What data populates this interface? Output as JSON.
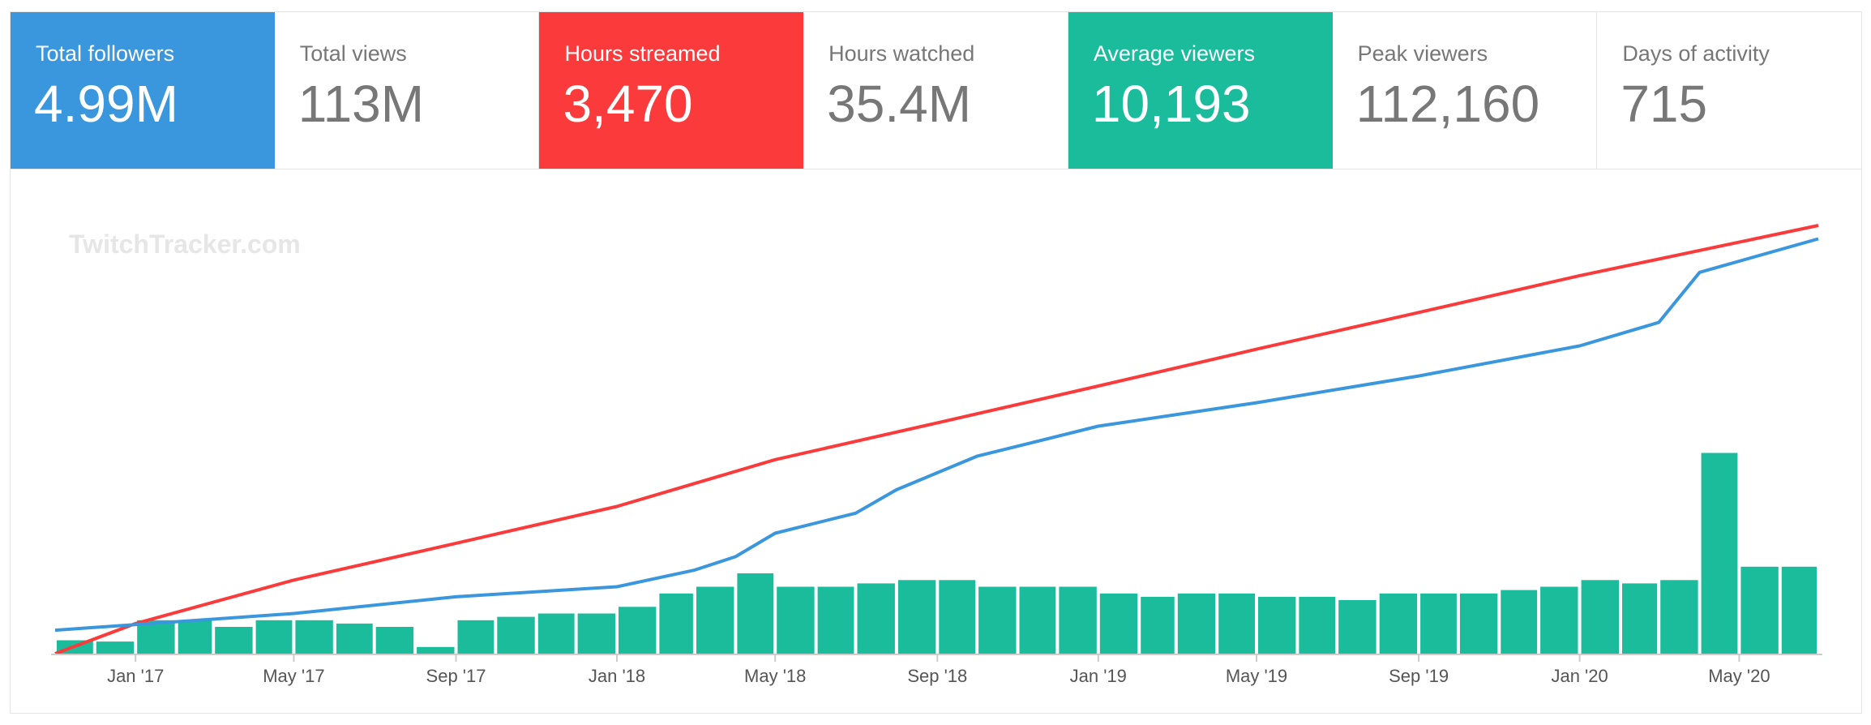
{
  "stats": [
    {
      "label": "Total followers",
      "value": "4.99M",
      "fill": "#3a96dd"
    },
    {
      "label": "Total views",
      "value": "113M",
      "fill": ""
    },
    {
      "label": "Hours streamed",
      "value": "3,470",
      "fill": "#fb3b3b"
    },
    {
      "label": "Hours watched",
      "value": "35.4M",
      "fill": ""
    },
    {
      "label": "Average viewers",
      "value": "10,193",
      "fill": "#1abc9c"
    },
    {
      "label": "Peak viewers",
      "value": "112,160",
      "fill": ""
    },
    {
      "label": "Days of activity",
      "value": "715",
      "fill": ""
    }
  ],
  "watermark": "TwitchTracker.com",
  "chart_data": {
    "type": "bar+line",
    "x_ticks": [
      "Jan '17",
      "May '17",
      "Sep '17",
      "Jan '18",
      "May '18",
      "Sep '18",
      "Jan '19",
      "May '19",
      "Sep '19",
      "Jan '20",
      "May '20"
    ],
    "x_range": [
      "2016-11-01",
      "2020-06-30"
    ],
    "grid": false,
    "colors": {
      "bars": "#1abc9c",
      "line_red": "#fb3b3b",
      "line_blue": "#3a96dd",
      "axis": "#cccccc"
    },
    "series": [
      {
        "kind": "bar",
        "points": [
          [
            "2016-11-01",
            0.2
          ],
          [
            "2016-12-01",
            0.18
          ],
          [
            "2017-01-01",
            0.5
          ],
          [
            "2017-02-01",
            0.5
          ],
          [
            "2017-03-01",
            0.4
          ],
          [
            "2017-04-01",
            0.5
          ],
          [
            "2017-05-01",
            0.5
          ],
          [
            "2017-06-01",
            0.45
          ],
          [
            "2017-07-01",
            0.4
          ],
          [
            "2017-08-01",
            0.1
          ],
          [
            "2017-09-01",
            0.5
          ],
          [
            "2017-10-01",
            0.55
          ],
          [
            "2017-11-01",
            0.6
          ],
          [
            "2017-12-01",
            0.6
          ],
          [
            "2018-01-01",
            0.7
          ],
          [
            "2018-02-01",
            0.9
          ],
          [
            "2018-03-01",
            1.0
          ],
          [
            "2018-04-01",
            1.2
          ],
          [
            "2018-05-01",
            1.0
          ],
          [
            "2018-06-01",
            1.0
          ],
          [
            "2018-07-01",
            1.05
          ],
          [
            "2018-08-01",
            1.1
          ],
          [
            "2018-09-01",
            1.1
          ],
          [
            "2018-10-01",
            1.0
          ],
          [
            "2018-11-01",
            1.0
          ],
          [
            "2018-12-01",
            1.0
          ],
          [
            "2019-01-01",
            0.9
          ],
          [
            "2019-02-01",
            0.85
          ],
          [
            "2019-03-01",
            0.9
          ],
          [
            "2019-04-01",
            0.9
          ],
          [
            "2019-05-01",
            0.85
          ],
          [
            "2019-06-01",
            0.85
          ],
          [
            "2019-07-01",
            0.8
          ],
          [
            "2019-08-01",
            0.9
          ],
          [
            "2019-09-01",
            0.9
          ],
          [
            "2019-10-01",
            0.9
          ],
          [
            "2019-11-01",
            0.95
          ],
          [
            "2019-12-01",
            1.0
          ],
          [
            "2020-01-01",
            1.1
          ],
          [
            "2020-02-01",
            1.05
          ],
          [
            "2020-03-01",
            1.1
          ],
          [
            "2020-04-01",
            3.0
          ],
          [
            "2020-05-01",
            1.3
          ],
          [
            "2020-06-01",
            1.3
          ]
        ]
      },
      {
        "kind": "line",
        "color": "red",
        "points": [
          [
            "2016-11-01",
            0.0
          ],
          [
            "2017-01-01",
            0.45
          ],
          [
            "2017-05-01",
            1.1
          ],
          [
            "2017-09-01",
            1.65
          ],
          [
            "2018-01-01",
            2.2
          ],
          [
            "2018-05-01",
            2.9
          ],
          [
            "2018-09-01",
            3.45
          ],
          [
            "2019-01-01",
            4.0
          ],
          [
            "2019-05-01",
            4.55
          ],
          [
            "2019-09-01",
            5.1
          ],
          [
            "2020-01-01",
            5.65
          ],
          [
            "2020-05-01",
            6.15
          ],
          [
            "2020-06-30",
            6.4
          ]
        ]
      },
      {
        "kind": "line",
        "color": "blue",
        "points": [
          [
            "2016-11-01",
            0.35
          ],
          [
            "2017-05-01",
            0.6
          ],
          [
            "2017-09-01",
            0.85
          ],
          [
            "2018-01-01",
            1.0
          ],
          [
            "2018-03-01",
            1.25
          ],
          [
            "2018-04-01",
            1.45
          ],
          [
            "2018-05-01",
            1.8
          ],
          [
            "2018-07-01",
            2.1
          ],
          [
            "2018-08-01",
            2.45
          ],
          [
            "2018-10-01",
            2.95
          ],
          [
            "2019-01-01",
            3.4
          ],
          [
            "2019-05-01",
            3.75
          ],
          [
            "2019-09-01",
            4.15
          ],
          [
            "2020-01-01",
            4.6
          ],
          [
            "2020-03-01",
            4.95
          ],
          [
            "2020-04-01",
            5.7
          ],
          [
            "2020-06-30",
            6.2
          ]
        ]
      }
    ]
  }
}
